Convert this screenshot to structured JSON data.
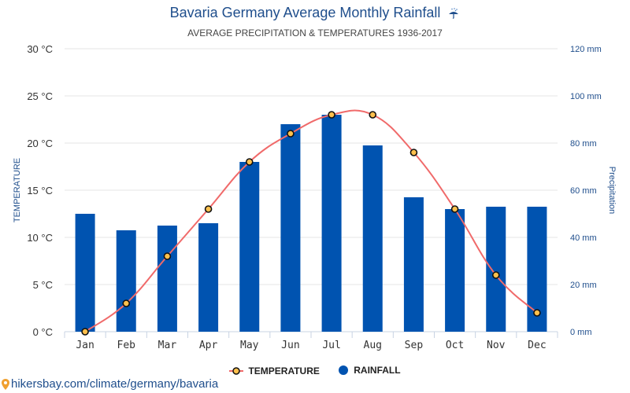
{
  "header": {
    "title": "Bavaria Germany Average Monthly Rainfall",
    "title_icon": "umbrella-rain-icon",
    "subtitle": "AVERAGE PRECIPITATION & TEMPERATURES 1936-2017"
  },
  "legend": {
    "temperature_label": "TEMPERATURE",
    "rainfall_label": "RAINFALL"
  },
  "source": {
    "icon": "location-pin-icon",
    "text": "hikersbay.com/climate/germany/bavaria"
  },
  "colors": {
    "bar": "#0053b0",
    "line": "#f06a6a",
    "marker_fill": "#ffc04d",
    "marker_stroke": "#111111",
    "title": "#1f4e8c",
    "grid": "#e6e6e6"
  },
  "chart_data": {
    "type": "bar+line",
    "title": "Bavaria Germany Average Monthly Rainfall",
    "subtitle": "AVERAGE PRECIPITATION & TEMPERATURES 1936-2017",
    "categories": [
      "Jan",
      "Feb",
      "Mar",
      "Apr",
      "May",
      "Jun",
      "Jul",
      "Aug",
      "Sep",
      "Oct",
      "Nov",
      "Dec"
    ],
    "series": [
      {
        "name": "RAINFALL",
        "type": "bar",
        "axis": "right",
        "unit": "mm",
        "values": [
          50,
          43,
          45,
          46,
          72,
          88,
          92,
          79,
          57,
          52,
          53,
          53
        ]
      },
      {
        "name": "TEMPERATURE",
        "type": "line",
        "axis": "left",
        "unit": "°C",
        "values": [
          0,
          3,
          8,
          13,
          18,
          21,
          23,
          23,
          19,
          13,
          6,
          2
        ]
      }
    ],
    "y_left": {
      "label": "TEMPERATURE",
      "range": [
        0,
        30
      ],
      "ticks": [
        0,
        5,
        10,
        15,
        20,
        25,
        30
      ],
      "tick_suffix": " °C"
    },
    "y_right": {
      "label": "Precipitation",
      "range": [
        0,
        120
      ],
      "ticks": [
        0,
        20,
        40,
        60,
        80,
        100,
        120
      ],
      "tick_suffix": " mm"
    },
    "grid": true,
    "legend_position": "bottom"
  }
}
